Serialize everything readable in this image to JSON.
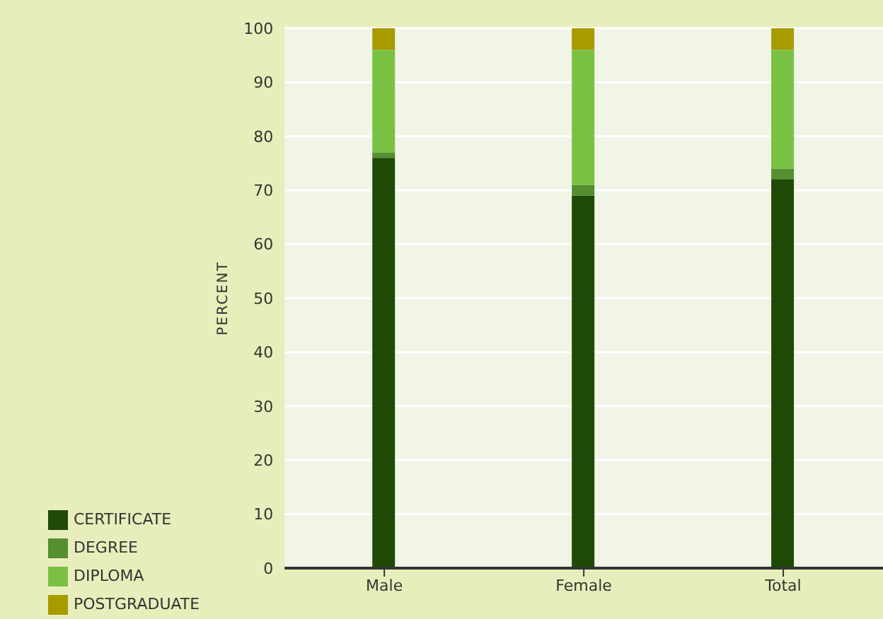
{
  "chart_data": {
    "type": "bar",
    "stacked": true,
    "ylabel": "PERCENT",
    "categories": [
      "Male",
      "Female",
      "Total"
    ],
    "series": [
      {
        "name": "CERTIFICATE",
        "color": "#1f4a06",
        "values": [
          76,
          69,
          72
        ]
      },
      {
        "name": "DEGREE",
        "color": "#548f30",
        "values": [
          1,
          2,
          2
        ]
      },
      {
        "name": "DIPLOMA",
        "color": "#7ac143",
        "values": [
          19,
          25,
          22
        ]
      },
      {
        "name": "POSTGRADUATE",
        "color": "#a89b00",
        "values": [
          4,
          4,
          4
        ]
      }
    ],
    "ylim": [
      0,
      100
    ],
    "yticks": [
      0,
      10,
      20,
      30,
      40,
      50,
      60,
      70,
      80,
      90,
      100
    ],
    "grid": "y",
    "legend": "bottom left"
  }
}
